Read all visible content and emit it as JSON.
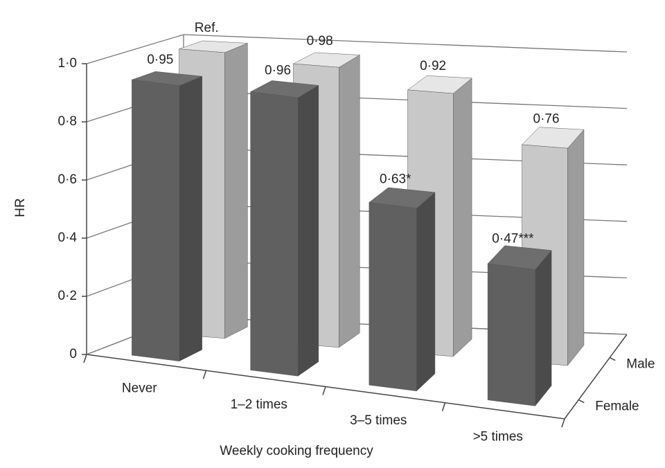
{
  "chart_data": {
    "type": "bar3d",
    "y_label": "HR",
    "x_label": "Weekly cooking frequency",
    "categories": [
      "Never",
      "1–2 times",
      "3–5 times",
      ">5 times"
    ],
    "series": [
      {
        "name": "Female",
        "color": "#606060",
        "values": [
          0.95,
          0.96,
          0.63,
          0.47
        ],
        "value_labels": [
          "0·95",
          "0·96",
          "0·63*",
          "0·47***"
        ]
      },
      {
        "name": "Male",
        "color": "#c8c8c8",
        "values": [
          1.0,
          0.98,
          0.92,
          0.76
        ],
        "value_labels": [
          "Ref.",
          "0·98",
          "0·92",
          "0·76"
        ]
      }
    ],
    "ylim": [
      0,
      1
    ],
    "yticks": [
      0,
      {
        "value": 0.2,
        "label": "0·2"
      },
      {
        "value": 0.4,
        "label": "0·4"
      },
      {
        "value": 0.6,
        "label": "0·6"
      },
      {
        "value": 0.8,
        "label": "0·8"
      },
      {
        "value": 1,
        "label": "1·0"
      }
    ],
    "grid": true
  }
}
